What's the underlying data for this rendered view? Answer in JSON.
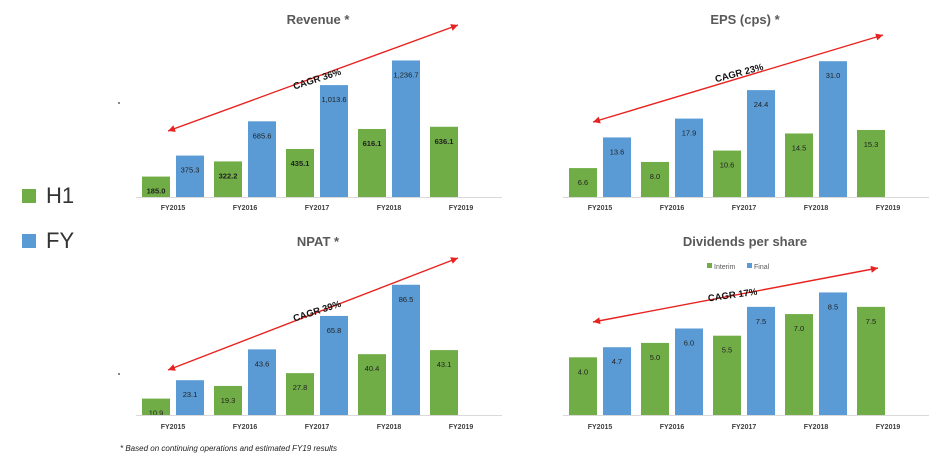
{
  "legend": {
    "items": [
      {
        "label": "H1",
        "color": "#70ad47"
      },
      {
        "label": "FY",
        "color": "#5b9bd5"
      }
    ]
  },
  "footnote": "* Based on continuing operations and estimated FY19 results",
  "colors": {
    "h1": "#70ad47",
    "fy": "#5b9bd5",
    "arrow": "#e8231f"
  },
  "chart_data": [
    {
      "type": "bar",
      "title": "Revenue *",
      "categories": [
        "FY2015",
        "FY2016",
        "FY2017",
        "FY2018",
        "FY2019"
      ],
      "series": [
        {
          "name": "H1",
          "values": [
            185.0,
            322.2,
            435.1,
            616.1,
            636.1
          ],
          "labels": [
            "185.0",
            "322.2",
            "435.1",
            "616.1",
            "636.1"
          ]
        },
        {
          "name": "FY",
          "values": [
            375.3,
            685.6,
            1013.6,
            1236.7,
            null
          ],
          "labels": [
            "375.3",
            "685.6",
            "1,013.6",
            "1,236.7",
            ""
          ]
        }
      ],
      "ylim": [
        0,
        1250
      ],
      "annotation": "CAGR 36%",
      "grid": false,
      "legend_in_chart": null
    },
    {
      "type": "bar",
      "title": "EPS (cps) *",
      "categories": [
        "FY2015",
        "FY2016",
        "FY2017",
        "FY2018",
        "FY2019"
      ],
      "series": [
        {
          "name": "H1",
          "values": [
            6.6,
            8.0,
            10.6,
            14.5,
            15.3
          ],
          "labels": [
            "6.6",
            "8.0",
            "10.6",
            "14.5",
            "15.3"
          ]
        },
        {
          "name": "FY",
          "values": [
            13.6,
            17.9,
            24.4,
            31.0,
            null
          ],
          "labels": [
            "13.6",
            "17.9",
            "24.4",
            "31.0",
            ""
          ]
        }
      ],
      "ylim": [
        0,
        31.5
      ],
      "annotation": "CAGR 23%",
      "grid": false,
      "legend_in_chart": null
    },
    {
      "type": "bar",
      "title": "NPAT *",
      "categories": [
        "FY2015",
        "FY2016",
        "FY2017",
        "FY2018",
        "FY2019"
      ],
      "series": [
        {
          "name": "H1",
          "values": [
            10.9,
            19.3,
            27.8,
            40.4,
            43.1
          ],
          "labels": [
            "10.9",
            "19.3",
            "27.8",
            "40.4",
            "43.1"
          ]
        },
        {
          "name": "FY",
          "values": [
            23.1,
            43.6,
            65.8,
            86.5,
            null
          ],
          "labels": [
            "23.1",
            "43.6",
            "65.8",
            "86.5",
            ""
          ]
        }
      ],
      "ylim": [
        0,
        87
      ],
      "annotation": "CAGR 39%",
      "grid": false,
      "legend_in_chart": null
    },
    {
      "type": "bar",
      "title": "Dividends per share",
      "categories": [
        "FY2015",
        "FY2016",
        "FY2017",
        "FY2018",
        "FY2019"
      ],
      "series": [
        {
          "name": "Interim",
          "values": [
            4.0,
            5.0,
            5.5,
            7.0,
            7.5
          ],
          "labels": [
            "4.0",
            "5.0",
            "5.5",
            "7.0",
            "7.5"
          ]
        },
        {
          "name": "Final",
          "values": [
            4.7,
            6.0,
            7.5,
            8.5,
            null
          ],
          "labels": [
            "4.7",
            "6.0",
            "7.5",
            "8.5",
            ""
          ]
        }
      ],
      "ylim": [
        0,
        8.6
      ],
      "annotation": "CAGR 17%",
      "grid": false,
      "legend_in_chart": [
        "Interim",
        "Final"
      ]
    }
  ]
}
